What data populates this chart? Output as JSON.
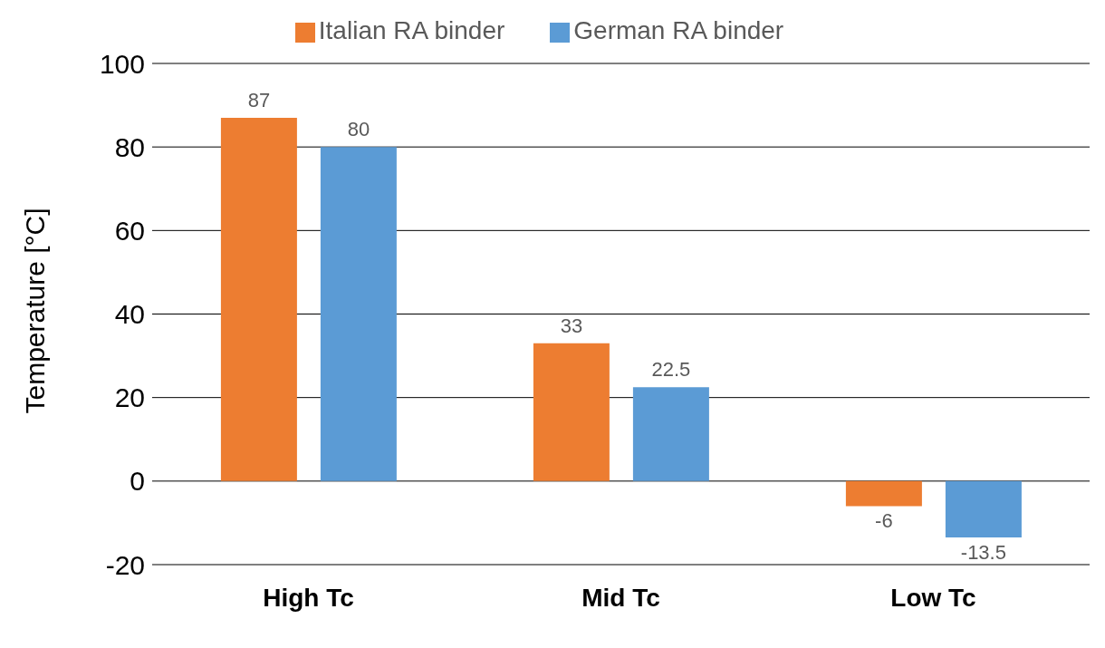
{
  "chart_data": {
    "type": "bar",
    "ylabel": "Temperature [°C]",
    "categories": [
      "High Tc",
      "Mid Tc",
      "Low Tc"
    ],
    "series": [
      {
        "name": "Italian RA binder",
        "color": "#ed7d31",
        "values": [
          87,
          33,
          -6
        ]
      },
      {
        "name": "German RA binder",
        "color": "#5b9bd5",
        "values": [
          80,
          22.5,
          -13.5
        ]
      }
    ],
    "ylim": [
      -20,
      100
    ],
    "yticks": [
      -20,
      0,
      20,
      40,
      60,
      80,
      100
    ],
    "grid": "y",
    "legend": "top",
    "data_labels": true
  }
}
